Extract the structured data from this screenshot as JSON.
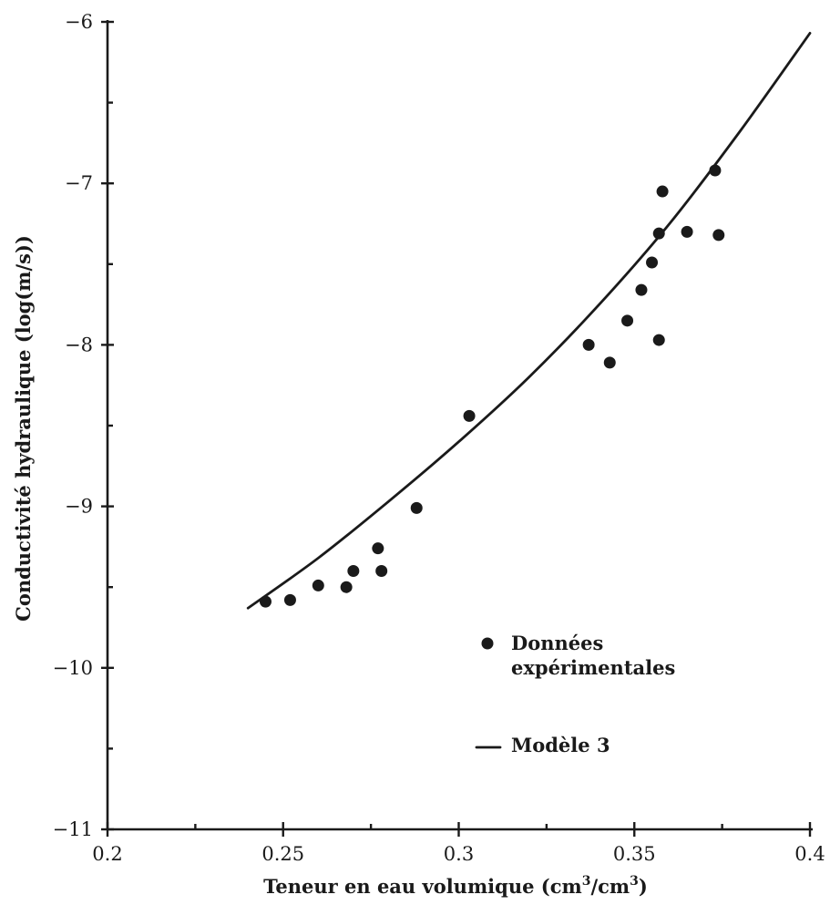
{
  "chart_data": {
    "type": "scatter",
    "xlabel": "Teneur en eau volumique (cm",
    "xlabel_full": "Teneur en eau volumique (cm3/cm3)",
    "ylabel": "Conductivité hydraulique (log(m/s))",
    "xlim": [
      0.2,
      0.4
    ],
    "ylim": [
      -11,
      -6
    ],
    "x_ticks": [
      0.2,
      0.25,
      0.3,
      0.35,
      0.4
    ],
    "x_tick_labels": [
      "0.2",
      "0.25",
      "0.3",
      "0.35",
      "0.4"
    ],
    "y_ticks": [
      -11,
      -10,
      -9,
      -8,
      -7,
      -6
    ],
    "y_tick_labels": [
      "−11",
      "−10",
      "−9",
      "−8",
      "−7",
      "−6"
    ],
    "grid": false,
    "legend_position": "bottom-right",
    "legend": {
      "points_label_line1": "Données",
      "points_label_line2": "expérimentales",
      "line_label": "Modèle 3"
    },
    "series": [
      {
        "kind": "points",
        "points": [
          [
            0.245,
            -9.59
          ],
          [
            0.252,
            -9.58
          ],
          [
            0.26,
            -9.49
          ],
          [
            0.268,
            -9.5
          ],
          [
            0.27,
            -9.4
          ],
          [
            0.277,
            -9.26
          ],
          [
            0.278,
            -9.4
          ],
          [
            0.288,
            -9.01
          ],
          [
            0.303,
            -8.44
          ],
          [
            0.337,
            -8.0
          ],
          [
            0.343,
            -8.11
          ],
          [
            0.348,
            -7.85
          ],
          [
            0.352,
            -7.66
          ],
          [
            0.355,
            -7.49
          ],
          [
            0.357,
            -7.97
          ],
          [
            0.357,
            -7.31
          ],
          [
            0.358,
            -7.05
          ],
          [
            0.365,
            -7.3
          ],
          [
            0.373,
            -6.92
          ],
          [
            0.374,
            -7.32
          ]
        ]
      },
      {
        "kind": "line",
        "points": [
          [
            0.24,
            -9.63
          ],
          [
            0.26,
            -9.32
          ],
          [
            0.28,
            -8.97
          ],
          [
            0.3,
            -8.6
          ],
          [
            0.32,
            -8.2
          ],
          [
            0.34,
            -7.75
          ],
          [
            0.36,
            -7.25
          ],
          [
            0.38,
            -6.68
          ],
          [
            0.4,
            -6.07
          ]
        ]
      }
    ]
  }
}
